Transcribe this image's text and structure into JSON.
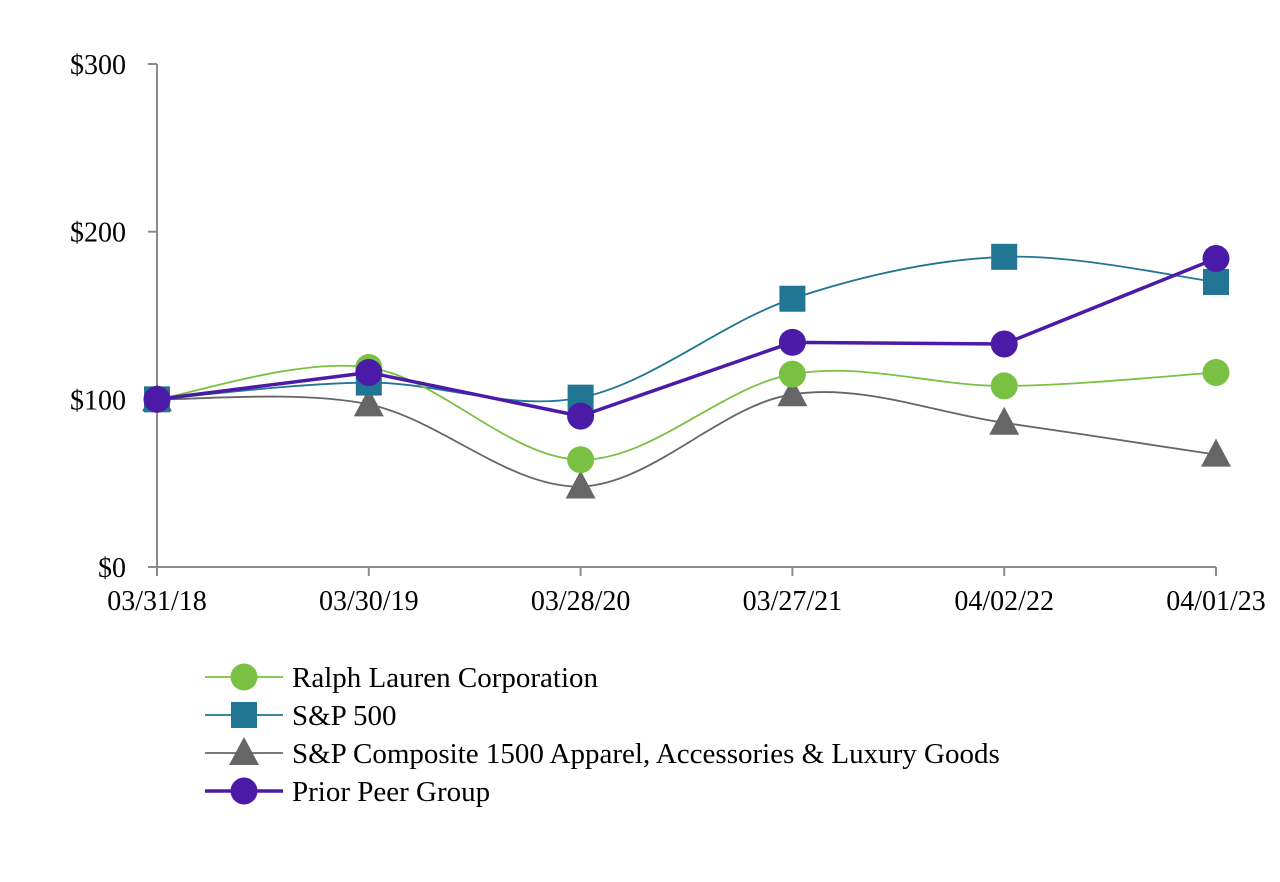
{
  "chart_data": {
    "type": "line",
    "title": "",
    "xlabel": "",
    "ylabel": "",
    "categories": [
      "03/31/18",
      "03/30/19",
      "03/28/20",
      "03/27/21",
      "04/02/22",
      "04/01/23"
    ],
    "y_ticks": [
      0,
      100,
      200,
      300
    ],
    "y_tick_labels": [
      "$0",
      "$100",
      "$200",
      "$300"
    ],
    "ylim": [
      0,
      300
    ],
    "grid": false,
    "legend_position": "bottom-left",
    "series": [
      {
        "name": "S&P Composite 1500 Apparel, Accessories & Luxury Goods",
        "color": "#666666",
        "marker": "triangle",
        "smooth": true,
        "values": [
          100,
          97,
          48,
          103,
          86,
          67
        ]
      },
      {
        "name": "S&P 500",
        "color": "#217693",
        "marker": "square",
        "smooth": true,
        "values": [
          100,
          110,
          101,
          160,
          185,
          170
        ]
      },
      {
        "name": "Ralph Lauren Corporation",
        "color": "#7AC143",
        "marker": "circle",
        "smooth": true,
        "values": [
          100,
          119,
          64,
          115,
          108,
          116
        ]
      },
      {
        "name": "Prior Peer Group",
        "color": "#4B1BA8",
        "marker": "circle",
        "smooth": false,
        "bold": true,
        "values": [
          100,
          116,
          90,
          134,
          133,
          184
        ]
      }
    ],
    "legend_order": [
      "Ralph Lauren Corporation",
      "S&P 500",
      "S&P Composite 1500 Apparel, Accessories & Luxury Goods",
      "Prior Peer Group"
    ]
  }
}
